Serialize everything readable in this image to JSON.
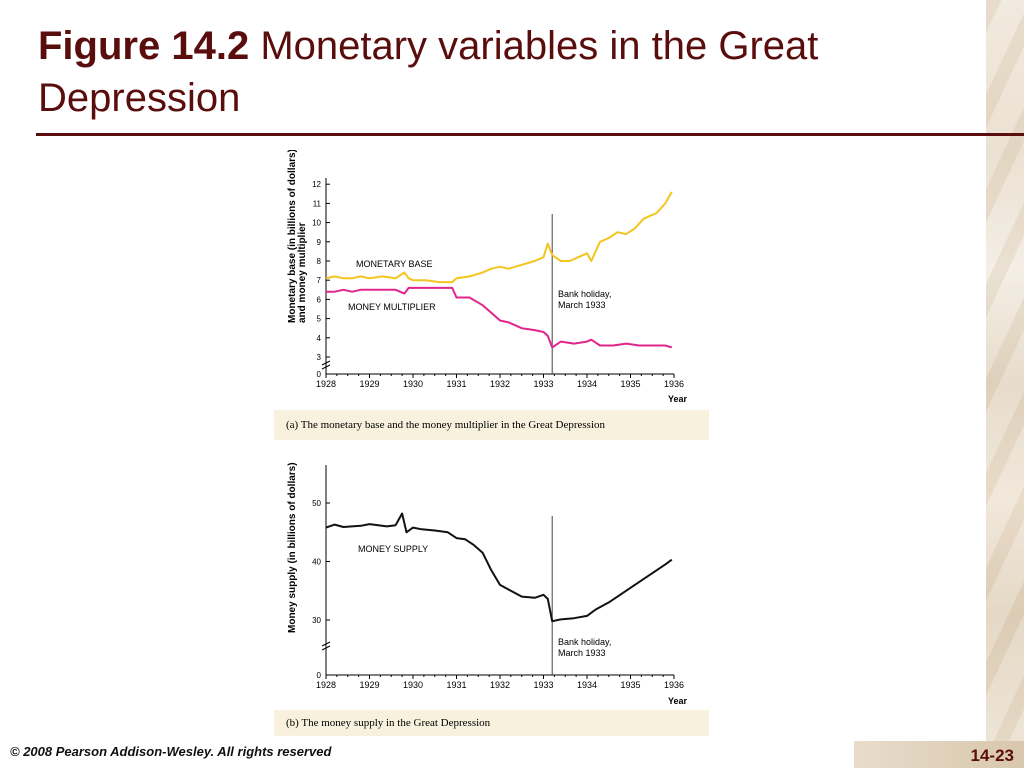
{
  "slide": {
    "title_bold": "Figure 14.2",
    "title_rest": " Monetary variables in the Great Depression",
    "footer": "© 2008 Pearson Addison-Wesley. All rights reserved",
    "page": "14-23"
  },
  "colors": {
    "title": "#5a0d0d",
    "base": "#f2c51f",
    "multiplier": "#e0258c",
    "supply": "#111111"
  },
  "chart_data": [
    {
      "type": "line",
      "caption": "(a) The monetary base and the money multiplier in the Great Depression",
      "ylabel_line1": "Monetary base (in billions of dollars)",
      "ylabel_line2": "and money multiplier",
      "xlabel": "Year",
      "x_ticks": [
        "1928",
        "1929",
        "1930",
        "1931",
        "1932",
        "1933",
        "1934",
        "1935",
        "1936"
      ],
      "y_ticks": [
        "0",
        "3",
        "4",
        "5",
        "6",
        "7",
        "8",
        "9",
        "10",
        "11",
        "12"
      ],
      "annotation": {
        "line1": "Bank holiday,",
        "line2": "March 1933",
        "x": 1933.2
      },
      "series": [
        {
          "name": "MONETARY BASE",
          "color": "#f2c51f",
          "x": [
            1928.0,
            1928.2,
            1928.4,
            1928.6,
            1928.8,
            1929.0,
            1929.3,
            1929.6,
            1929.8,
            1929.9,
            1930.0,
            1930.3,
            1930.6,
            1930.9,
            1931.0,
            1931.3,
            1931.6,
            1931.8,
            1932.0,
            1932.2,
            1932.5,
            1932.8,
            1933.0,
            1933.1,
            1933.2,
            1933.4,
            1933.6,
            1933.8,
            1934.0,
            1934.1,
            1934.3,
            1934.5,
            1934.7,
            1934.9,
            1935.1,
            1935.3,
            1935.6,
            1935.8,
            1935.95
          ],
          "y": [
            7.1,
            7.2,
            7.1,
            7.1,
            7.2,
            7.1,
            7.2,
            7.1,
            7.4,
            7.1,
            7.0,
            7.0,
            6.9,
            6.9,
            7.1,
            7.2,
            7.4,
            7.6,
            7.7,
            7.6,
            7.8,
            8.0,
            8.2,
            8.9,
            8.3,
            8.0,
            8.0,
            8.2,
            8.4,
            8.0,
            9.0,
            9.2,
            9.5,
            9.4,
            9.7,
            10.2,
            10.5,
            11.0,
            11.6
          ]
        },
        {
          "name": "MONEY MULTIPLIER",
          "color": "#e0258c",
          "x": [
            1928.0,
            1928.2,
            1928.4,
            1928.6,
            1928.8,
            1929.0,
            1929.3,
            1929.6,
            1929.8,
            1929.9,
            1930.0,
            1930.3,
            1930.6,
            1930.9,
            1931.0,
            1931.3,
            1931.6,
            1931.8,
            1932.0,
            1932.2,
            1932.5,
            1932.8,
            1933.0,
            1933.1,
            1933.2,
            1933.4,
            1933.7,
            1934.0,
            1934.1,
            1934.3,
            1934.6,
            1934.9,
            1935.2,
            1935.5,
            1935.8,
            1935.95
          ],
          "y": [
            6.4,
            6.4,
            6.5,
            6.4,
            6.5,
            6.5,
            6.5,
            6.5,
            6.3,
            6.6,
            6.6,
            6.6,
            6.6,
            6.6,
            6.1,
            6.1,
            5.7,
            5.3,
            4.9,
            4.8,
            4.5,
            4.4,
            4.3,
            4.1,
            3.5,
            3.8,
            3.7,
            3.8,
            3.9,
            3.6,
            3.6,
            3.7,
            3.6,
            3.6,
            3.6,
            3.5
          ]
        }
      ]
    },
    {
      "type": "line",
      "caption": "(b) The money supply in the Great Depression",
      "ylabel": "Money supply (in billions of dollars)",
      "xlabel": "Year",
      "x_ticks": [
        "1928",
        "1929",
        "1930",
        "1931",
        "1932",
        "1933",
        "1934",
        "1935",
        "1936"
      ],
      "y_ticks": [
        "0",
        "30",
        "40",
        "50"
      ],
      "annotation": {
        "line1": "Bank holiday,",
        "line2": "March 1933",
        "x": 1933.2
      },
      "series": [
        {
          "name": "MONEY SUPPLY",
          "color": "#111111",
          "x": [
            1928.0,
            1928.2,
            1928.4,
            1928.6,
            1928.8,
            1929.0,
            1929.2,
            1929.4,
            1929.6,
            1929.75,
            1929.85,
            1930.0,
            1930.2,
            1930.5,
            1930.8,
            1931.0,
            1931.2,
            1931.4,
            1931.6,
            1931.8,
            1932.0,
            1932.2,
            1932.5,
            1932.8,
            1933.0,
            1933.1,
            1933.2,
            1933.4,
            1933.7,
            1934.0,
            1934.2,
            1934.5,
            1934.8,
            1935.0,
            1935.3,
            1935.6,
            1935.8,
            1935.95
          ],
          "y": [
            45.8,
            46.3,
            45.9,
            46.0,
            46.1,
            46.4,
            46.2,
            46.0,
            46.2,
            48.2,
            45.0,
            45.8,
            45.5,
            45.3,
            45.0,
            44.0,
            43.8,
            42.8,
            41.5,
            38.5,
            36.0,
            35.2,
            34.0,
            33.8,
            34.3,
            33.6,
            29.8,
            30.1,
            30.3,
            30.7,
            31.8,
            33.0,
            34.5,
            35.5,
            37.0,
            38.5,
            39.5,
            40.3
          ]
        }
      ]
    }
  ]
}
